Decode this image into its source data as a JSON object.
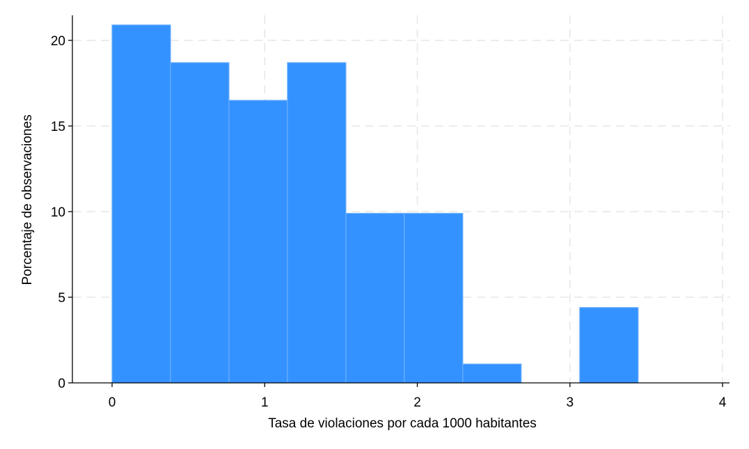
{
  "chart_data": {
    "type": "bar",
    "subtype": "histogram",
    "xlabel": "Tasa de violaciones por cada 1000 habitantes",
    "ylabel": "Porcentaje de observaciones",
    "xlim": [
      -0.25,
      4.05
    ],
    "ylim": [
      0,
      21.5
    ],
    "xticks": [
      0,
      1,
      2,
      3,
      4
    ],
    "yticks": [
      0,
      5,
      10,
      15,
      20
    ],
    "grid": true,
    "bin_width": 0.383,
    "bins": [
      {
        "x0": 0.0,
        "x1": 0.383,
        "value": 20.9
      },
      {
        "x0": 0.383,
        "x1": 0.766,
        "value": 18.7
      },
      {
        "x0": 0.766,
        "x1": 1.149,
        "value": 16.5
      },
      {
        "x0": 1.149,
        "x1": 1.532,
        "value": 18.7
      },
      {
        "x0": 1.532,
        "x1": 1.915,
        "value": 9.9
      },
      {
        "x0": 1.915,
        "x1": 2.298,
        "value": 9.9
      },
      {
        "x0": 2.298,
        "x1": 2.681,
        "value": 1.1
      },
      {
        "x0": 2.681,
        "x1": 3.064,
        "value": 0
      },
      {
        "x0": 3.064,
        "x1": 3.447,
        "value": 4.4
      }
    ],
    "bar_color": "#3392ff",
    "bar_edge_color": "#6aaeff"
  }
}
